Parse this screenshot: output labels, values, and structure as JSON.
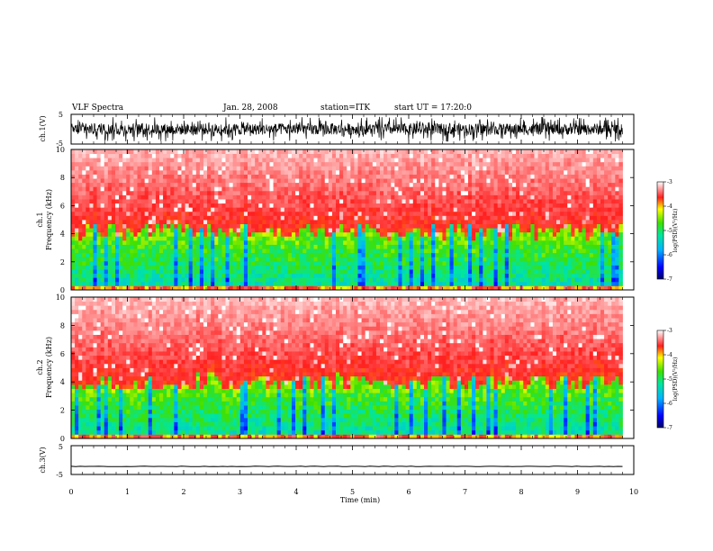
{
  "header": {
    "title": "VLF Spectra",
    "date": "Jan. 28, 2008",
    "station": "station=ITK",
    "start_ut": "start UT = 17:20:0"
  },
  "chart_data": [
    {
      "type": "line",
      "panel": "ch1-waveform",
      "ylabel": "ch.1(V)",
      "ylim": [
        -5,
        5
      ],
      "yticks": [
        "5",
        "-5"
      ],
      "xlim": [
        0,
        10
      ],
      "trace_center": 0,
      "trace_amplitude": 3.2
    },
    {
      "type": "heatmap",
      "panel": "ch1-spectrogram",
      "ylabel": "Frequency (kHz)",
      "channel_label": "ch.1",
      "ylim": [
        0,
        10
      ],
      "yticks": [
        "0",
        "2",
        "4",
        "6",
        "8",
        "10"
      ],
      "xlim": [
        0,
        9.8
      ],
      "colorbar": {
        "label": "log(PSD)(V²/Hz)",
        "range": [
          -7,
          -3
        ],
        "ticks": [
          "-3",
          "-4",
          "-5",
          "-6",
          "-7"
        ]
      },
      "signal_boundary_khz": 4.2
    },
    {
      "type": "heatmap",
      "panel": "ch2-spectrogram",
      "ylabel": "Frequency (kHz)",
      "channel_label": "ch.2",
      "ylim": [
        0,
        10
      ],
      "yticks": [
        "0",
        "2",
        "4",
        "6",
        "8",
        "10"
      ],
      "xlim": [
        0,
        9.8
      ],
      "colorbar": {
        "label": "log(PSD)(V²/Hz)",
        "range": [
          -7,
          -3
        ],
        "ticks": [
          "-3",
          "-4",
          "-5",
          "-6",
          "-7"
        ]
      },
      "signal_boundary_khz": 4.0
    },
    {
      "type": "line",
      "panel": "ch3-waveform",
      "ylabel": "ch.3(V)",
      "ylim": [
        -5,
        5
      ],
      "yticks": [
        "5",
        "-5"
      ],
      "xlim": [
        0,
        10
      ],
      "trace_center": -2.2,
      "trace_amplitude": 0.15
    }
  ],
  "x_axis": {
    "label": "Time (min)",
    "ticks": [
      "0",
      "1",
      "2",
      "3",
      "4",
      "5",
      "6",
      "7",
      "8",
      "9",
      "10"
    ],
    "range": [
      0,
      10
    ]
  }
}
